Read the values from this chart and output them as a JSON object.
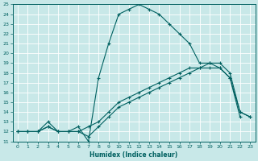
{
  "xlabel": "Humidex (Indice chaleur)",
  "bg_color": "#c8e8e8",
  "line_color": "#006060",
  "grid_color": "#b0d8d8",
  "xlim": [
    -0.5,
    23.5
  ],
  "ylim": [
    11,
    25
  ],
  "yticks": [
    11,
    12,
    13,
    14,
    15,
    16,
    17,
    18,
    19,
    20,
    21,
    22,
    23,
    24,
    25
  ],
  "xticks": [
    0,
    1,
    2,
    3,
    4,
    5,
    6,
    7,
    8,
    9,
    10,
    11,
    12,
    13,
    14,
    15,
    16,
    17,
    18,
    19,
    20,
    21,
    22,
    23
  ],
  "line1_x": [
    0,
    1,
    2,
    3,
    4,
    5,
    6,
    7,
    8,
    9,
    10,
    11,
    12,
    13,
    14,
    15,
    16,
    17,
    18,
    19,
    20,
    21,
    22,
    23
  ],
  "line1_y": [
    12.0,
    12.0,
    12.0,
    13.0,
    12.0,
    12.0,
    12.5,
    11.0,
    17.5,
    21.0,
    24.0,
    24.5,
    25.0,
    24.5,
    24.0,
    23.0,
    22.0,
    21.0,
    19.0,
    19.0,
    18.5,
    17.5,
    13.5,
    null
  ],
  "line2_x": [
    0,
    1,
    2,
    3,
    4,
    5,
    6,
    7,
    8,
    9,
    10,
    11,
    12,
    13,
    14,
    15,
    16,
    17,
    18,
    19,
    20,
    21,
    22,
    23
  ],
  "line2_y": [
    12.0,
    12.0,
    12.0,
    12.5,
    12.0,
    12.0,
    12.0,
    12.5,
    13.0,
    14.0,
    15.0,
    15.5,
    16.0,
    16.5,
    17.0,
    17.5,
    18.0,
    18.5,
    18.5,
    19.0,
    19.0,
    18.0,
    14.0,
    13.5
  ],
  "line3_x": [
    0,
    1,
    2,
    3,
    4,
    5,
    6,
    7,
    8,
    9,
    10,
    11,
    12,
    13,
    14,
    15,
    16,
    17,
    18,
    19,
    20,
    21,
    22,
    23
  ],
  "line3_y": [
    12.0,
    12.0,
    12.0,
    12.5,
    12.0,
    12.0,
    12.0,
    11.5,
    12.5,
    13.5,
    14.5,
    15.0,
    15.5,
    16.0,
    16.5,
    17.0,
    17.5,
    18.0,
    18.5,
    18.5,
    18.5,
    17.5,
    14.0,
    13.5
  ]
}
